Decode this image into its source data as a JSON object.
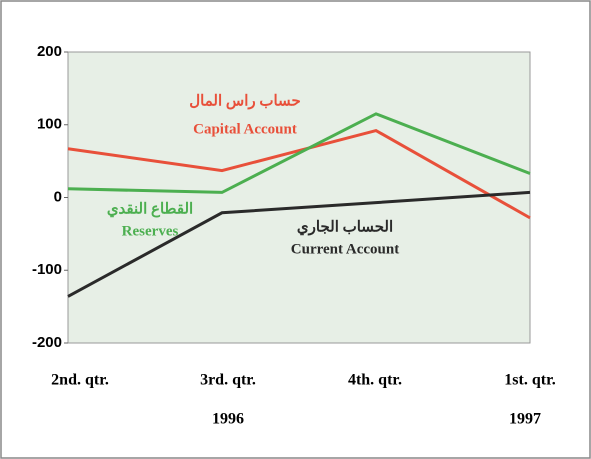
{
  "chart_data": {
    "type": "line",
    "categories": [
      "2nd. qtr.",
      "3rd. qtr.",
      "4th. qtr.",
      "1st. qtr."
    ],
    "years": [
      "1996",
      "1997"
    ],
    "ylim": [
      -200,
      200
    ],
    "yticks": [
      -200,
      -100,
      0,
      100,
      200
    ],
    "series": [
      {
        "name": "Capital Account",
        "name_ar": "حساب راس المال",
        "color": "#e8503a",
        "values": [
          67,
          37,
          92,
          -28
        ]
      },
      {
        "name": "Reserves",
        "name_ar": "القطاع النقدي",
        "color": "#4caf50",
        "values": [
          12,
          7,
          115,
          33
        ]
      },
      {
        "name": "Current Account",
        "name_ar": "الحساب الجاري",
        "color": "#2a2a2a",
        "values": [
          -136,
          -21,
          -7,
          7
        ]
      }
    ]
  }
}
